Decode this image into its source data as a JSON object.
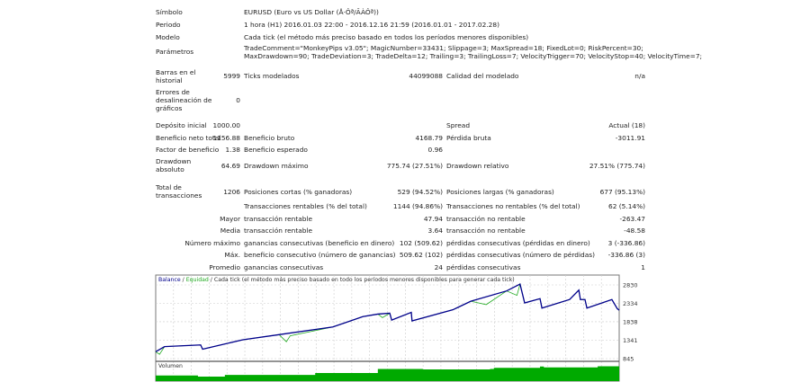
{
  "info": {
    "symbol": {
      "label": "Símbolo",
      "value": "EURUSD (Euro vs US Dollar (Å·Ôª/ÃÀÔª))"
    },
    "period": {
      "label": "Periodo",
      "value": "1 hora (H1) 2016.01.03 22:00 - 2016.12.16 21:59 (2016.01.01 - 2017.02.28)"
    },
    "model": {
      "label": "Modelo",
      "value": "Cada tick (el método más preciso basado en todos los períodos menores disponibles)"
    },
    "params": {
      "label": "Parámetros",
      "line1": "TradeComment=\"MonkeyPips v3.05\"; MagicNumber=33431; Slippage=3; MaxSpread=18; FixedLot=0; RiskPercent=30;",
      "line2": "MaxDrawdown=90; TradeDeviation=3; TradeDelta=12; Trailing=3; TrailingLoss=7; VelocityTrigger=70; VelocityStop=40; VelocityTime=7;"
    },
    "bars": {
      "label1": "Barras en el",
      "label2": "historial",
      "value": "5999",
      "ticks_label": "Ticks modelados",
      "ticks_value": "44099088",
      "quality_label": "Calidad del modelado",
      "quality_value": "n/a"
    },
    "errors": {
      "label1": "Errores de",
      "label2": "desalineación de",
      "label3": "gráficos",
      "value": "0"
    }
  },
  "stats": {
    "deposit": {
      "label": "Depósito inicial",
      "value": "1000.00",
      "l3": "Spread",
      "v3": "Actual (18)"
    },
    "net": {
      "label": "Beneficio neto total",
      "value": "1156.88",
      "l2": "Beneficio bruto",
      "v2": "4168.79",
      "l3": "Pérdida bruta",
      "v3": "-3011.91"
    },
    "factor": {
      "label": "Factor de beneficio",
      "value": "1.38",
      "l2": "Beneficio esperado",
      "v2": "0.96"
    },
    "dd": {
      "label1": "Drawdown",
      "label2": "absoluto",
      "value": "64.69",
      "l2": "Drawdown máximo",
      "v2": "775.74 (27.51%)",
      "l3": "Drawdown relativo",
      "v3": "27.51% (775.74)"
    },
    "total": {
      "label1": "Total de",
      "label2": "transacciones",
      "value": "1206",
      "l2": "Posiciones cortas (% ganadoras)",
      "v2": "529 (94.52%)",
      "l3": "Posiciones largas (% ganadoras)",
      "v3": "677 (95.13%)"
    },
    "rows": [
      {
        "pre": "",
        "l2": "Transacciones rentables (% del total)",
        "v2": "1144 (94.86%)",
        "l3": "Transacciones no rentables (% del total)",
        "v3": "62 (5.14%)"
      },
      {
        "pre": "Mayor",
        "l2": "transacción rentable",
        "v2": "47.94",
        "l3": "transacción no rentable",
        "v3": "-263.47"
      },
      {
        "pre": "Media",
        "l2": "transacción rentable",
        "v2": "3.64",
        "l3": "transacción no rentable",
        "v3": "-48.58"
      },
      {
        "pre": "Número máximo",
        "l2": "ganancias consecutivas (beneficio en dinero)",
        "v2": "102 (509.62)",
        "l3": "pérdidas consecutivas (pérdidas en dinero)",
        "v3": "3 (-336.86)"
      },
      {
        "pre": "Máx.",
        "l2": "beneficio consecutivo (número de ganancias)",
        "v2": "509.62 (102)",
        "l3": "pérdidas consecutivas (número de pérdidas)",
        "v3": "-336.86 (3)"
      },
      {
        "pre": "Promedio",
        "l2": "ganancias consecutivas",
        "v2": "24",
        "l3": "pérdidas consecutivas",
        "v3": "1"
      }
    ]
  },
  "chart_data": {
    "type": "line",
    "title_balance": "Balance",
    "title_equity": "Equidad",
    "title_rest": "Cada tick (el método más preciso basado en todo los períodos menores disponibles para generar cada tick)",
    "volume_label": "Volumen",
    "yticks": [
      2830,
      2334,
      1838,
      1341,
      845
    ],
    "ylim": [
      845,
      2830
    ],
    "xlim": [
      0,
      1206
    ],
    "grid": true,
    "colors": {
      "balance": "#00008b",
      "equity": "#22aa22",
      "volume": "#00aa00"
    },
    "balance": {
      "x": [
        0,
        23,
        117,
        122,
        227,
        321,
        461,
        539,
        578,
        609,
        614,
        665,
        667,
        773,
        820,
        913,
        948,
        960,
        1000,
        1005,
        1077,
        1101,
        1105,
        1117,
        1122,
        1187,
        1201,
        1206
      ],
      "y": [
        1030,
        1168,
        1214,
        1100,
        1353,
        1491,
        1699,
        1976,
        2045,
        2068,
        1884,
        2091,
        1861,
        2160,
        2391,
        2668,
        2853,
        2345,
        2460,
        2207,
        2437,
        2691,
        2437,
        2437,
        2207,
        2437,
        2190,
        2150
      ]
    },
    "equity": {
      "x": [
        0,
        10,
        23,
        117,
        122,
        227,
        321,
        340,
        350,
        461,
        539,
        578,
        590,
        609,
        614,
        665,
        667,
        773,
        820,
        860,
        913,
        940,
        948,
        960,
        1000,
        1005,
        1077,
        1101,
        1105,
        1117,
        1122,
        1187,
        1201,
        1206
      ],
      "y": [
        1030,
        960,
        1168,
        1214,
        1100,
        1353,
        1491,
        1300,
        1460,
        1699,
        1976,
        2045,
        1950,
        2068,
        1884,
        2091,
        1861,
        2160,
        2391,
        2300,
        2668,
        2550,
        2853,
        2345,
        2460,
        2207,
        2437,
        2691,
        2437,
        2437,
        2207,
        2437,
        2190,
        2150
      ]
    },
    "volume": {
      "x": [
        0,
        110,
        180,
        415,
        578,
        695,
        870,
        880,
        1000,
        1010,
        1150,
        1206
      ],
      "y": [
        0.35,
        0.28,
        0.38,
        0.5,
        0.75,
        0.72,
        0.75,
        0.82,
        0.9,
        0.85,
        0.92,
        0.85
      ]
    }
  }
}
